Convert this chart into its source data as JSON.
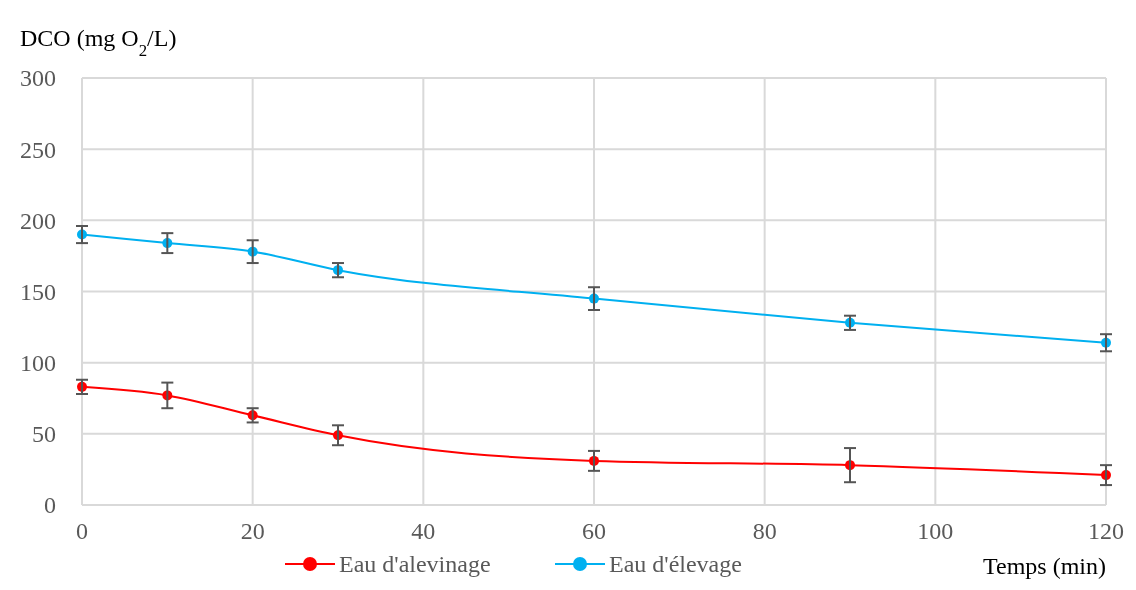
{
  "chart_data": {
    "type": "line",
    "xlabel": "Temps (min)",
    "ylabel": "DCO (mg O$_{2}$/L)",
    "x": [
      0,
      10,
      20,
      30,
      60,
      90,
      120
    ],
    "series": [
      {
        "name": "Eau d'alevinage",
        "color": "#ff0000",
        "values": [
          83,
          77,
          63,
          49,
          31,
          28,
          21
        ],
        "errors": [
          5,
          9,
          5,
          7,
          7,
          12,
          7
        ]
      },
      {
        "name": "Eau d'élevage",
        "color": "#00b0f0",
        "values": [
          190,
          184,
          178,
          165,
          145,
          128,
          114
        ],
        "errors": [
          6,
          7,
          8,
          5,
          8,
          5,
          6
        ]
      }
    ],
    "xlim": [
      0,
      120
    ],
    "xticks": [
      0,
      20,
      40,
      60,
      80,
      100,
      120
    ],
    "ylim": [
      0,
      300
    ],
    "yticks": [
      0,
      50,
      100,
      150,
      200,
      250,
      300
    ],
    "grid": true,
    "legend": "bottom",
    "marker": "circle",
    "line_style": "solid"
  }
}
